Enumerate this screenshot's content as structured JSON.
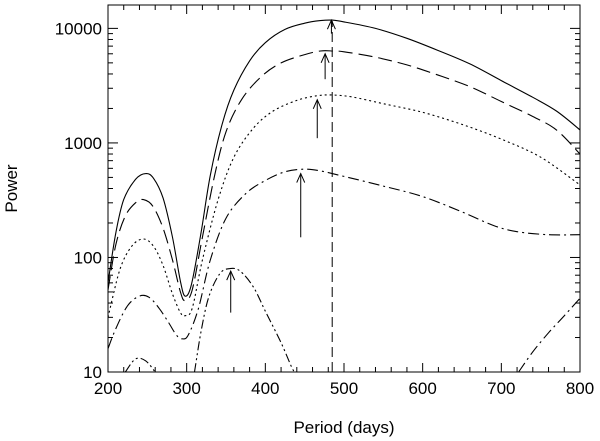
{
  "chart_data": {
    "type": "line",
    "title": "",
    "xlabel": "Period (days)",
    "ylabel": "Power",
    "xlim": [
      200,
      800
    ],
    "ylim": [
      10,
      16000
    ],
    "yscale": "log",
    "grid": false,
    "legend": "none",
    "xticks": [
      200,
      300,
      400,
      500,
      600,
      700,
      800
    ],
    "xtick_labels": [
      "200",
      "300",
      "400",
      "500",
      "600",
      "700",
      "800"
    ],
    "yticks": [
      10,
      100,
      1000,
      10000
    ],
    "ytick_labels": [
      "10",
      "100",
      "1000",
      "10000"
    ],
    "series": [
      {
        "style": "solid",
        "points": [
          [
            200,
            60
          ],
          [
            210,
            165
          ],
          [
            220,
            320
          ],
          [
            235,
            480
          ],
          [
            248,
            540
          ],
          [
            258,
            490
          ],
          [
            270,
            330
          ],
          [
            282,
            150
          ],
          [
            292,
            62
          ],
          [
            298,
            46
          ],
          [
            306,
            58
          ],
          [
            318,
            160
          ],
          [
            330,
            520
          ],
          [
            345,
            1450
          ],
          [
            360,
            2900
          ],
          [
            380,
            5200
          ],
          [
            400,
            7500
          ],
          [
            425,
            9800
          ],
          [
            450,
            11100
          ],
          [
            470,
            11700
          ],
          [
            485,
            11800
          ],
          [
            500,
            11400
          ],
          [
            540,
            10000
          ],
          [
            580,
            8200
          ],
          [
            620,
            6400
          ],
          [
            660,
            4900
          ],
          [
            700,
            3500
          ],
          [
            740,
            2500
          ],
          [
            770,
            1900
          ],
          [
            800,
            1300
          ]
        ]
      },
      {
        "style": "long-dash",
        "points": [
          [
            200,
            52
          ],
          [
            210,
            130
          ],
          [
            222,
            230
          ],
          [
            235,
            300
          ],
          [
            245,
            320
          ],
          [
            257,
            280
          ],
          [
            270,
            180
          ],
          [
            282,
            95
          ],
          [
            292,
            50
          ],
          [
            298,
            42
          ],
          [
            307,
            52
          ],
          [
            320,
            150
          ],
          [
            335,
            500
          ],
          [
            350,
            1250
          ],
          [
            370,
            2400
          ],
          [
            395,
            3800
          ],
          [
            420,
            5000
          ],
          [
            450,
            5900
          ],
          [
            470,
            6350
          ],
          [
            485,
            6350
          ],
          [
            500,
            6250
          ],
          [
            540,
            5600
          ],
          [
            580,
            4800
          ],
          [
            620,
            3900
          ],
          [
            660,
            3100
          ],
          [
            700,
            2300
          ],
          [
            740,
            1700
          ],
          [
            770,
            1300
          ],
          [
            800,
            800
          ]
        ]
      },
      {
        "style": "dotted",
        "points": [
          [
            200,
            30
          ],
          [
            215,
            78
          ],
          [
            230,
            125
          ],
          [
            245,
            145
          ],
          [
            258,
            125
          ],
          [
            270,
            85
          ],
          [
            282,
            48
          ],
          [
            292,
            33
          ],
          [
            298,
            31
          ],
          [
            307,
            36
          ],
          [
            320,
            95
          ],
          [
            340,
            320
          ],
          [
            360,
            750
          ],
          [
            385,
            1350
          ],
          [
            410,
            1900
          ],
          [
            440,
            2350
          ],
          [
            465,
            2580
          ],
          [
            485,
            2620
          ],
          [
            510,
            2520
          ],
          [
            550,
            2200
          ],
          [
            600,
            1850
          ],
          [
            650,
            1450
          ],
          [
            700,
            1080
          ],
          [
            750,
            750
          ],
          [
            800,
            430
          ]
        ]
      },
      {
        "style": "dash-dot",
        "points": [
          [
            200,
            16
          ],
          [
            210,
            24
          ],
          [
            225,
            38
          ],
          [
            240,
            46
          ],
          [
            252,
            45
          ],
          [
            265,
            36
          ],
          [
            277,
            27
          ],
          [
            287,
            21
          ],
          [
            294,
            19.5
          ],
          [
            302,
            21
          ],
          [
            315,
            36
          ],
          [
            330,
            95
          ],
          [
            350,
            220
          ],
          [
            375,
            360
          ],
          [
            400,
            470
          ],
          [
            425,
            560
          ],
          [
            450,
            590
          ],
          [
            470,
            570
          ],
          [
            500,
            510
          ],
          [
            550,
            420
          ],
          [
            600,
            340
          ],
          [
            650,
            250
          ],
          [
            690,
            190
          ],
          [
            720,
            168
          ],
          [
            760,
            158
          ],
          [
            800,
            158
          ]
        ]
      },
      {
        "style": "dash-dot-dot",
        "points": [
          [
            222,
            10
          ],
          [
            235,
            13
          ],
          [
            248,
            12.5
          ],
          [
            260,
            10
          ]
        ]
      },
      {
        "style": "dash-dot-dot",
        "points": [
          [
            310,
            10
          ],
          [
            318,
            22
          ],
          [
            328,
            45
          ],
          [
            342,
            72
          ],
          [
            355,
            80
          ],
          [
            368,
            76
          ],
          [
            385,
            55
          ],
          [
            400,
            34
          ],
          [
            420,
            18
          ],
          [
            435,
            10.5
          ],
          [
            440,
            10
          ]
        ]
      },
      {
        "style": "dash-dot",
        "points": [
          [
            722,
            10
          ],
          [
            740,
            15
          ],
          [
            760,
            22
          ],
          [
            780,
            31
          ],
          [
            800,
            44
          ]
        ]
      }
    ],
    "marker_lines": [
      {
        "style": "dashed",
        "x": 485,
        "y1": 10,
        "y2": 11600
      }
    ],
    "arrows": [
      {
        "x": 356,
        "y_from": 33,
        "y_to": 76
      },
      {
        "x": 445,
        "y_from": 150,
        "y_to": 540
      },
      {
        "x": 466,
        "y_from": 1100,
        "y_to": 2380
      },
      {
        "x": 476,
        "y_from": 3600,
        "y_to": 6000
      },
      {
        "x": 484,
        "y_from": 9000,
        "y_to": 11800
      }
    ]
  }
}
